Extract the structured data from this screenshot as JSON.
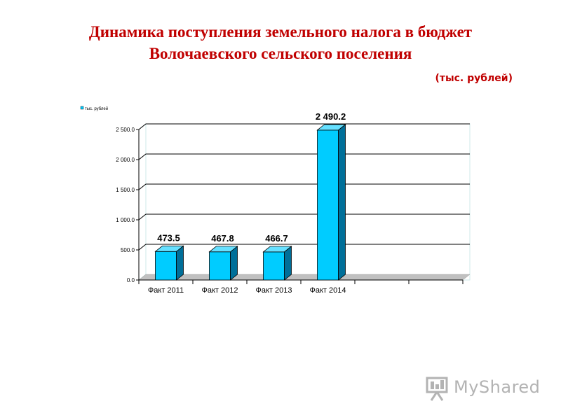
{
  "title_line1": "Динамика поступления земельного налога в бюджет",
  "title_line2": "Волочаевского сельского поселения",
  "units": "(тыс. рублей)",
  "logo_text": "MyShared",
  "colors": {
    "title": "#c00000",
    "bar_front": "#00ccff",
    "bar_side": "#006f99",
    "bar_top": "#66e0ff",
    "floor": "#c0c0c0"
  },
  "chart_data": {
    "type": "bar",
    "categories": [
      "Факт 2011",
      "Факт 2012",
      "Факт 2013",
      "Факт 2014",
      "",
      ""
    ],
    "series": [
      {
        "name": "тыс. рублей",
        "values": [
          473.5,
          467.8,
          466.7,
          2490.2,
          null,
          null
        ]
      }
    ],
    "data_labels": [
      "473.5",
      "467.8",
      "466.7",
      "2 490.2"
    ],
    "y_ticks": [
      0,
      500,
      1000,
      1500,
      2000,
      2500
    ],
    "y_tick_labels": [
      "0.0",
      "500.0",
      "1 000.0",
      "1 500.0",
      "2 000.0",
      "2 500.0"
    ],
    "ylim": [
      0,
      2500
    ],
    "grid": true,
    "legend_position": "top-left",
    "three_d": true
  }
}
